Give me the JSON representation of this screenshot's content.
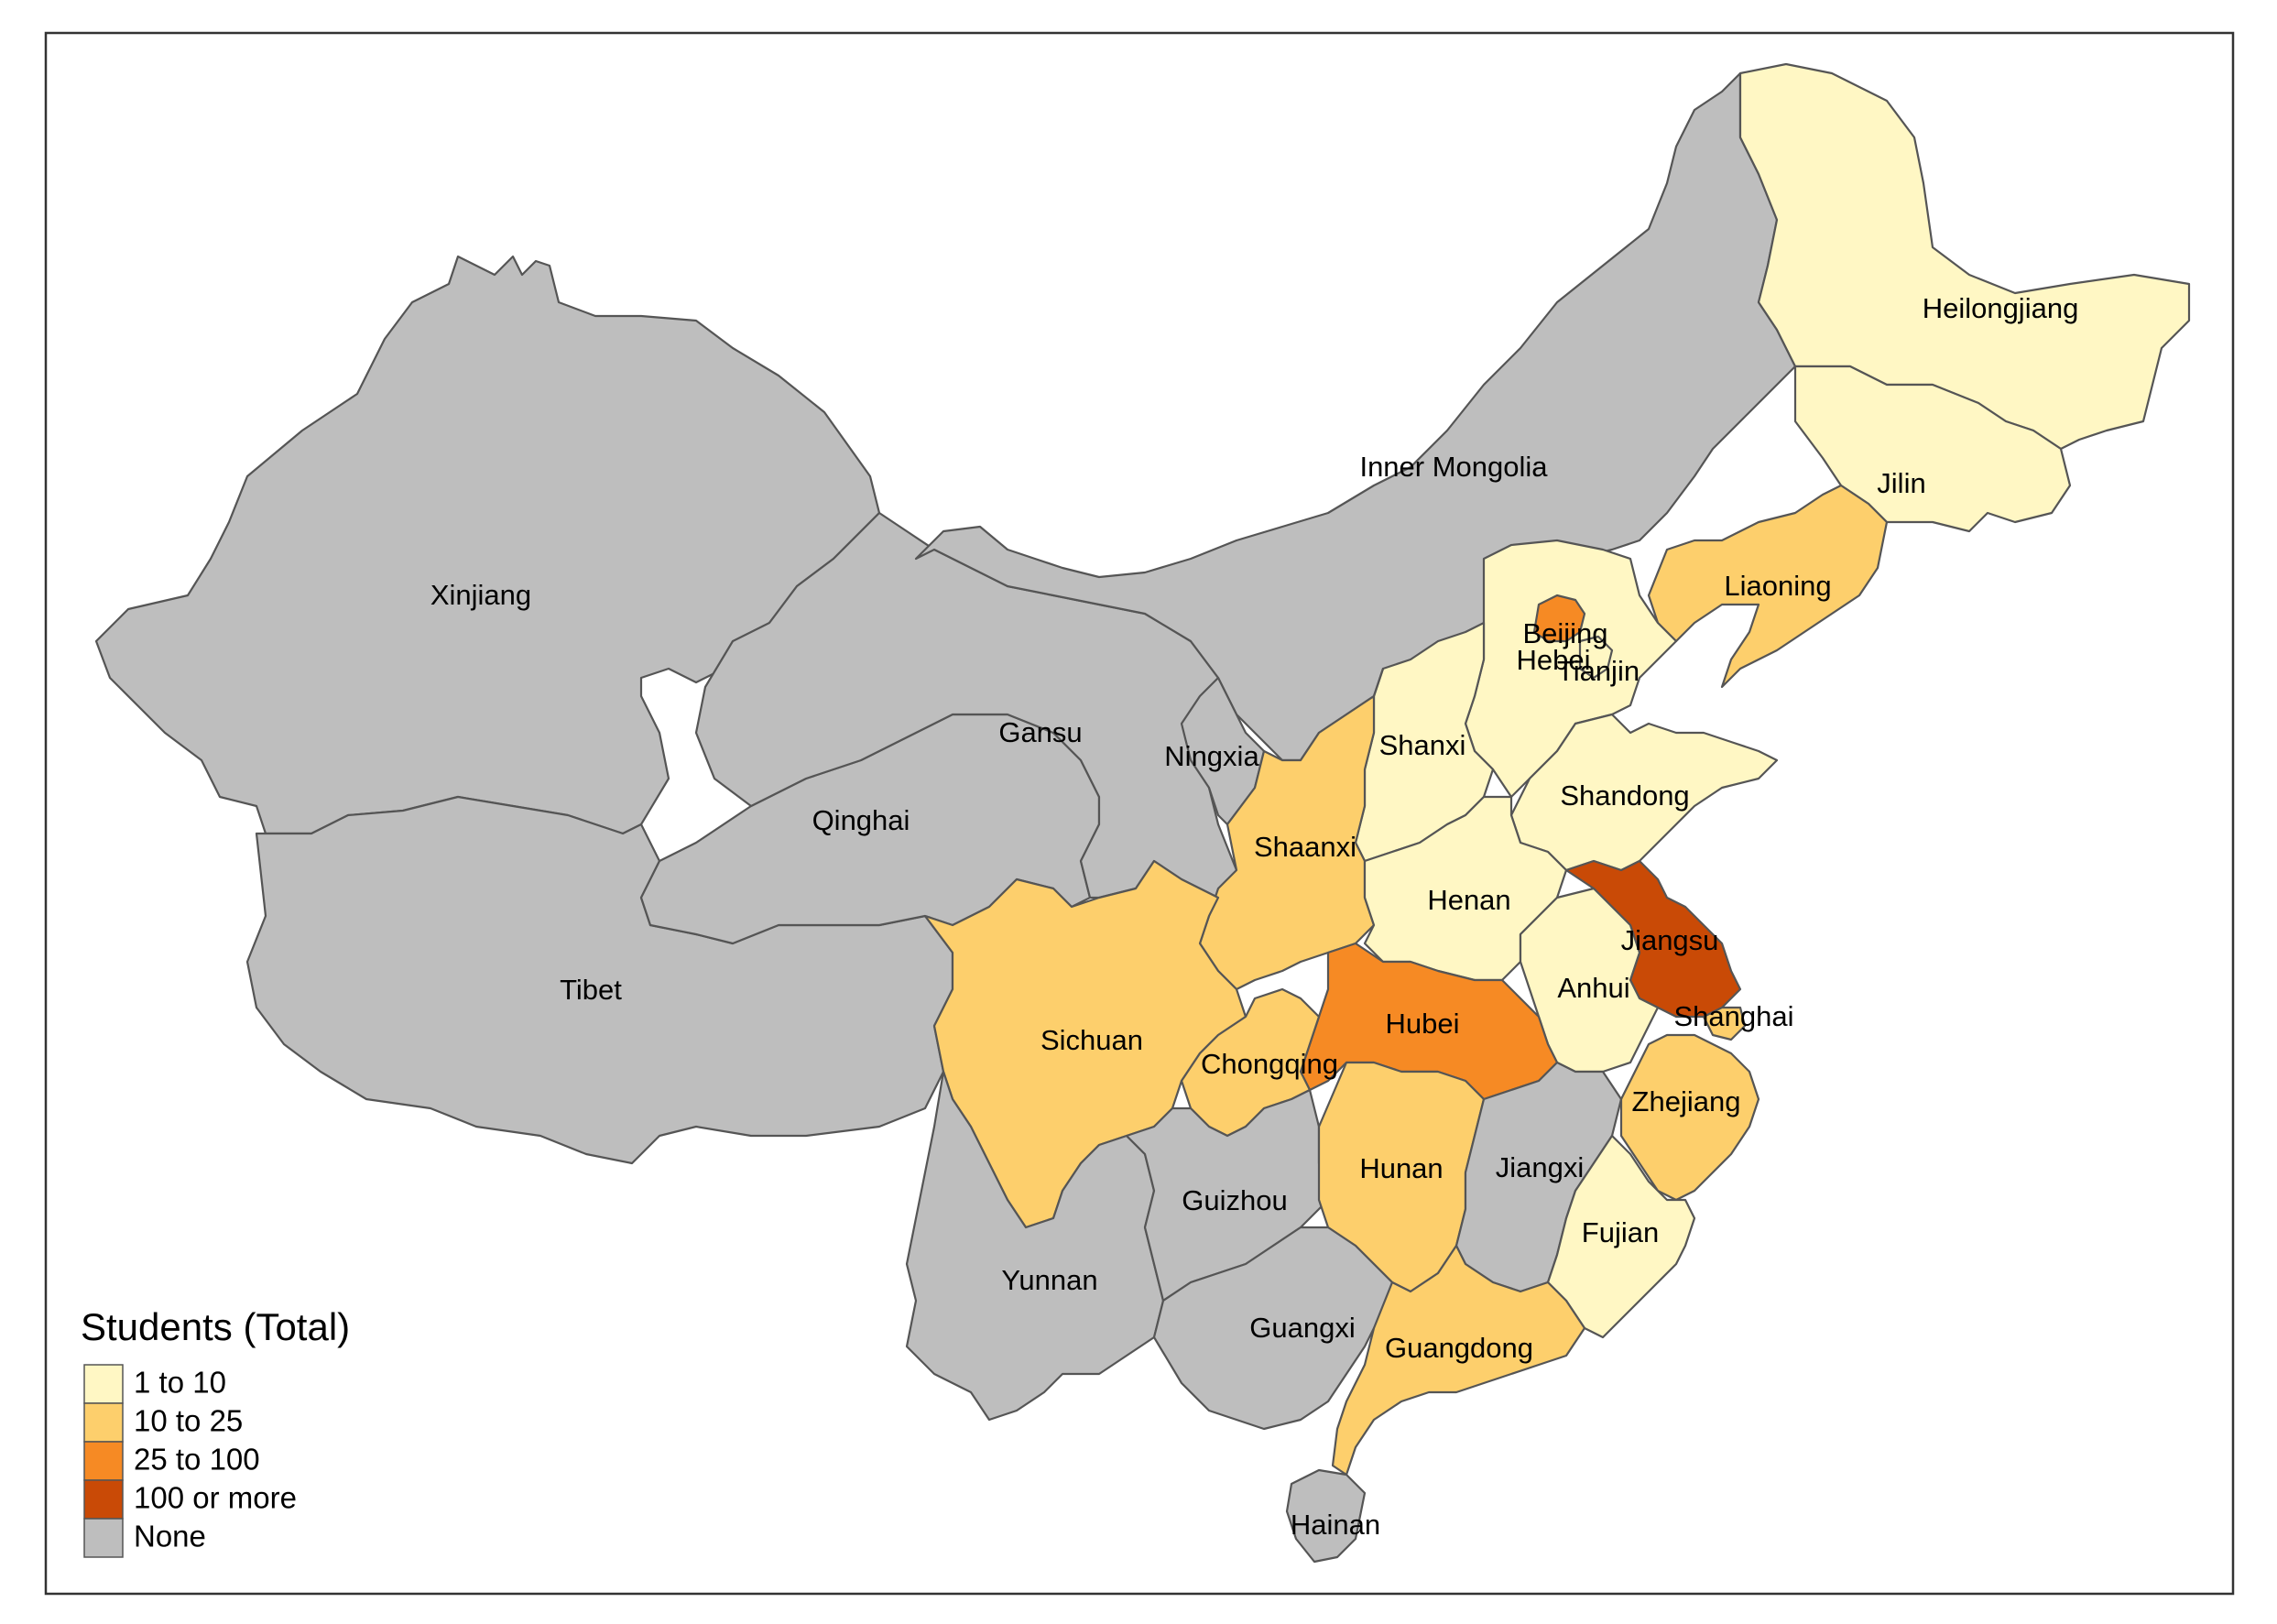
{
  "legend": {
    "title": "Students (Total)",
    "items": [
      {
        "key": "c1",
        "label": "1 to 10",
        "color": "#FFF7C4"
      },
      {
        "key": "c2",
        "label": "10 to 25",
        "color": "#FDCF6C"
      },
      {
        "key": "c3",
        "label": "25 to 100",
        "color": "#F68A24"
      },
      {
        "key": "c4",
        "label": "100 or more",
        "color": "#C94A06"
      },
      {
        "key": "none",
        "label": "None",
        "color": "#BEBEBE"
      }
    ]
  },
  "provinces": [
    {
      "name": "Xinjiang",
      "category": "none"
    },
    {
      "name": "Tibet",
      "category": "none"
    },
    {
      "name": "Qinghai",
      "category": "none"
    },
    {
      "name": "Gansu",
      "category": "none"
    },
    {
      "name": "Inner Mongolia",
      "category": "none"
    },
    {
      "name": "Ningxia",
      "category": "none"
    },
    {
      "name": "Yunnan",
      "category": "none"
    },
    {
      "name": "Guizhou",
      "category": "none"
    },
    {
      "name": "Guangxi",
      "category": "none"
    },
    {
      "name": "Jiangxi",
      "category": "none"
    },
    {
      "name": "Hainan",
      "category": "none"
    },
    {
      "name": "Heilongjiang",
      "category": "c1"
    },
    {
      "name": "Jilin",
      "category": "c1"
    },
    {
      "name": "Hebei",
      "category": "c1"
    },
    {
      "name": "Tianjin",
      "category": "c1"
    },
    {
      "name": "Shanxi",
      "category": "c1"
    },
    {
      "name": "Shandong",
      "category": "c1"
    },
    {
      "name": "Henan",
      "category": "c1"
    },
    {
      "name": "Anhui",
      "category": "c1"
    },
    {
      "name": "Fujian",
      "category": "c1"
    },
    {
      "name": "Liaoning",
      "category": "c2"
    },
    {
      "name": "Shaanxi",
      "category": "c2"
    },
    {
      "name": "Sichuan",
      "category": "c2"
    },
    {
      "name": "Chongqing",
      "category": "c2"
    },
    {
      "name": "Hunan",
      "category": "c2"
    },
    {
      "name": "Guangdong",
      "category": "c2"
    },
    {
      "name": "Zhejiang",
      "category": "c2"
    },
    {
      "name": "Shanghai",
      "category": "c2"
    },
    {
      "name": "Beijing",
      "category": "c3"
    },
    {
      "name": "Hubei",
      "category": "c3"
    },
    {
      "name": "Jiangsu",
      "category": "c4"
    }
  ]
}
